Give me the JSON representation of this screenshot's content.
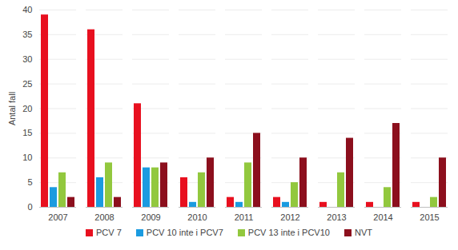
{
  "chart_data": {
    "type": "bar",
    "categories": [
      "2007",
      "2008",
      "2009",
      "2010",
      "2011",
      "2012",
      "2013",
      "2014",
      "2015"
    ],
    "series": [
      {
        "name": "PCV 7",
        "color": "#e8101f",
        "values": [
          39,
          36,
          21,
          6,
          2,
          2,
          1,
          1,
          1
        ]
      },
      {
        "name": "PCV 10 inte i PCV7",
        "color": "#1b9be0",
        "values": [
          4,
          6,
          8,
          1,
          1,
          1,
          0,
          0,
          0
        ]
      },
      {
        "name": "PCV 13 inte i PCV10",
        "color": "#92c83e",
        "values": [
          7,
          9,
          8,
          7,
          9,
          5,
          7,
          4,
          2
        ]
      },
      {
        "name": "NVT",
        "color": "#8c0f1d",
        "values": [
          2,
          2,
          9,
          10,
          15,
          10,
          14,
          17,
          10
        ]
      }
    ],
    "y_label": "Antal fall",
    "ylim": [
      0,
      40
    ],
    "yticks": [
      0,
      5,
      10,
      15,
      20,
      25,
      30,
      35,
      40
    ],
    "grid": true,
    "legend": "bottom"
  }
}
